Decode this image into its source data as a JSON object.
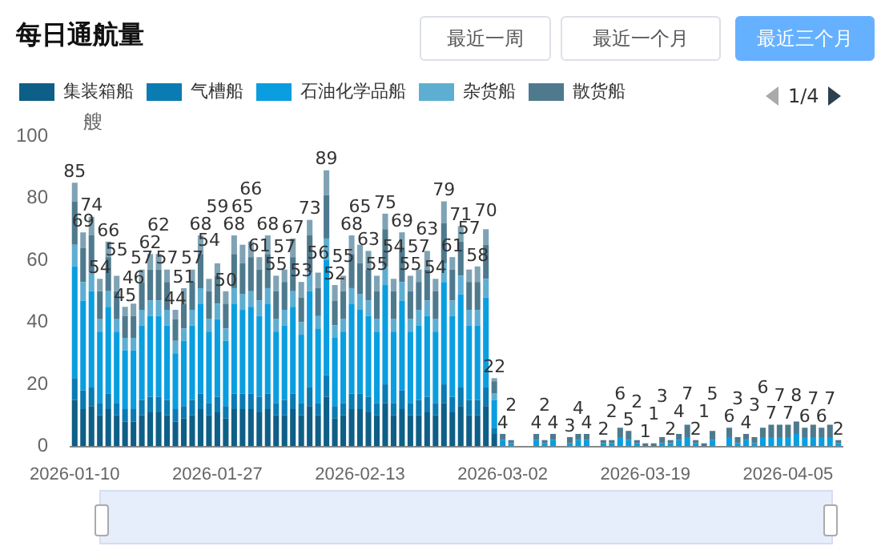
{
  "chart_data": {
    "type": "bar",
    "stacked": true,
    "title": "每日通航量",
    "ylabel": "艘",
    "annotations": [
      "最近一周",
      "最近一个月",
      "最近三个月",
      "1/4"
    ],
    "categories": [
      "2026-01-10",
      null,
      null,
      null,
      null,
      null,
      null,
      null,
      null,
      null,
      null,
      null,
      null,
      null,
      null,
      null,
      null,
      "2026-01-27",
      null,
      null,
      null,
      null,
      null,
      null,
      null,
      null,
      null,
      null,
      null,
      null,
      null,
      null,
      null,
      null,
      "2026-02-13",
      null,
      null,
      null,
      null,
      null,
      null,
      null,
      null,
      null,
      null,
      null,
      null,
      null,
      null,
      null,
      null,
      "2026-03-02",
      null,
      null,
      null,
      null,
      null,
      null,
      null,
      null,
      null,
      null,
      null,
      null,
      null,
      null,
      null,
      null,
      "2026-03-19",
      null,
      null,
      null,
      null,
      null,
      null,
      null,
      null,
      null,
      null,
      null,
      null,
      null,
      null,
      null,
      null,
      "2026-04-05",
      null,
      null,
      null,
      null,
      null,
      null
    ],
    "series": [
      {
        "name": "集装箱船",
        "color": "#0e5f87",
        "values": [
          15,
          12,
          13,
          10,
          12,
          10,
          8,
          8,
          10,
          11,
          11,
          10,
          8,
          9,
          10,
          12,
          10,
          11,
          9,
          12,
          12,
          12,
          11,
          12,
          10,
          10,
          12,
          10,
          13,
          10,
          16,
          9,
          10,
          12,
          12,
          11,
          10,
          14,
          10,
          12,
          10,
          10,
          11,
          10,
          14,
          11,
          13,
          10,
          10,
          13,
          4,
          0,
          0,
          null,
          null,
          0,
          0,
          0,
          null,
          0,
          0,
          0,
          null,
          0,
          0,
          0,
          0,
          0,
          0,
          0,
          0,
          0,
          0,
          0,
          0,
          0,
          0,
          null,
          0,
          0,
          0,
          0,
          0,
          0,
          0,
          0,
          0,
          0,
          0,
          0,
          0,
          0
        ]
      },
      {
        "name": "气槽船",
        "color": "#0a7bb3",
        "values": [
          7,
          6,
          6,
          4,
          5,
          4,
          4,
          4,
          5,
          5,
          5,
          5,
          4,
          4,
          5,
          5,
          4,
          5,
          4,
          5,
          5,
          5,
          5,
          5,
          4,
          5,
          5,
          4,
          6,
          4,
          7,
          4,
          4,
          5,
          5,
          5,
          4,
          6,
          4,
          6,
          4,
          5,
          5,
          4,
          6,
          5,
          6,
          5,
          5,
          6,
          2,
          0,
          0,
          null,
          null,
          0,
          0,
          0,
          null,
          0,
          0,
          0,
          null,
          0,
          0,
          0,
          0,
          0,
          0,
          0,
          0,
          0,
          0,
          0,
          0,
          0,
          0,
          null,
          0,
          0,
          0,
          0,
          0,
          0,
          0,
          0,
          0,
          0,
          0,
          0,
          0,
          0
        ]
      },
      {
        "name": "石油化学品船",
        "color": "#0a9ee0",
        "values": [
          36,
          29,
          31,
          23,
          28,
          23,
          19,
          19,
          24,
          26,
          26,
          24,
          18,
          21,
          24,
          29,
          23,
          25,
          21,
          29,
          27,
          28,
          26,
          29,
          23,
          24,
          28,
          22,
          31,
          24,
          37,
          22,
          23,
          29,
          27,
          26,
          23,
          32,
          23,
          29,
          23,
          24,
          26,
          23,
          33,
          26,
          30,
          24,
          24,
          29,
          9,
          2,
          1,
          null,
          null,
          2,
          1,
          2,
          null,
          1,
          2,
          2,
          null,
          1,
          1,
          3,
          2,
          1,
          0,
          0,
          1,
          1,
          2,
          3,
          1,
          0,
          2,
          null,
          3,
          1,
          2,
          1,
          3,
          3,
          3,
          3,
          4,
          3,
          3,
          3,
          3,
          1
        ]
      },
      {
        "name": "杂货船",
        "color": "#5eaed2",
        "values": [
          7,
          6,
          6,
          4,
          5,
          4,
          4,
          4,
          5,
          5,
          5,
          5,
          4,
          4,
          5,
          5,
          4,
          5,
          4,
          5,
          5,
          5,
          5,
          5,
          4,
          5,
          5,
          4,
          6,
          4,
          7,
          4,
          4,
          5,
          5,
          5,
          4,
          6,
          4,
          6,
          4,
          5,
          5,
          4,
          6,
          5,
          6,
          5,
          5,
          6,
          2,
          0,
          0,
          null,
          null,
          0,
          0,
          0,
          null,
          0,
          0,
          0,
          null,
          0,
          0,
          0,
          0,
          0,
          0,
          0,
          0,
          0,
          0,
          0,
          0,
          0,
          0,
          null,
          0,
          0,
          0,
          0,
          0,
          0,
          0,
          0,
          0,
          0,
          0,
          0,
          0,
          0
        ]
      },
      {
        "name": "散货船",
        "color": "#4f7a8e",
        "values": [
          14,
          11,
          12,
          9,
          11,
          9,
          7,
          7,
          9,
          10,
          10,
          9,
          7,
          8,
          9,
          11,
          9,
          9,
          8,
          11,
          10,
          11,
          10,
          11,
          9,
          9,
          11,
          8,
          12,
          9,
          14,
          8,
          9,
          11,
          10,
          10,
          9,
          12,
          9,
          11,
          9,
          9,
          10,
          9,
          13,
          10,
          11,
          9,
          9,
          11,
          4,
          2,
          1,
          null,
          null,
          2,
          1,
          2,
          null,
          2,
          2,
          2,
          null,
          1,
          1,
          3,
          3,
          1,
          1,
          1,
          2,
          1,
          2,
          4,
          1,
          1,
          3,
          null,
          3,
          2,
          2,
          2,
          3,
          4,
          4,
          4,
          4,
          3,
          4,
          3,
          4,
          1
        ]
      },
      {
        "color": "#7fa3b4",
        "values": [
          6,
          5,
          6,
          4,
          5,
          5,
          3,
          4,
          4,
          5,
          5,
          4,
          3,
          5,
          4,
          6,
          4,
          4,
          4,
          6,
          6,
          5,
          4,
          6,
          5,
          4,
          6,
          5,
          5,
          5,
          8,
          5,
          5,
          6,
          6,
          6,
          5,
          5,
          4,
          5,
          5,
          4,
          6,
          4,
          7,
          4,
          5,
          4,
          5,
          5,
          1,
          0,
          0,
          null,
          null,
          0,
          0,
          0,
          null,
          0,
          0,
          0,
          null,
          0,
          0,
          0,
          0,
          0,
          0,
          0,
          0,
          0,
          0,
          0,
          0,
          0,
          0,
          null,
          0,
          0,
          0,
          0,
          0,
          0,
          0,
          0,
          0,
          0,
          0,
          0,
          0,
          0
        ]
      }
    ],
    "totals": [
      "85",
      "69",
      "74",
      "54",
      "66",
      "55",
      "45",
      "46",
      "57",
      "62",
      "62",
      "57",
      "44",
      "51",
      "57",
      "68",
      "54",
      "59",
      "50",
      "68",
      "65",
      "66",
      "61",
      "68",
      "55",
      "57",
      "67",
      "53",
      "73",
      "56",
      "89",
      "52",
      "55",
      "68",
      "65",
      "63",
      "55",
      "75",
      "54",
      "69",
      "55",
      "57",
      "63",
      "54",
      "79",
      "61",
      "71",
      "57",
      "58",
      "70",
      "22",
      "4",
      "2",
      null,
      null,
      "4",
      "2",
      "4",
      null,
      "3",
      "4",
      "4",
      null,
      "2",
      "2",
      "6",
      "5",
      "2",
      "1",
      "1",
      "3",
      "2",
      "4",
      "7",
      "2",
      "1",
      "5",
      null,
      "6",
      "3",
      "4",
      "3",
      "6",
      "7",
      "7",
      "7",
      "8",
      "6",
      "7",
      "6",
      "7",
      "2"
    ],
    "ylim": [
      0,
      100
    ],
    "yticks": [
      0,
      20,
      40,
      60,
      80,
      100
    ],
    "grid": false,
    "legend": "top left"
  }
}
